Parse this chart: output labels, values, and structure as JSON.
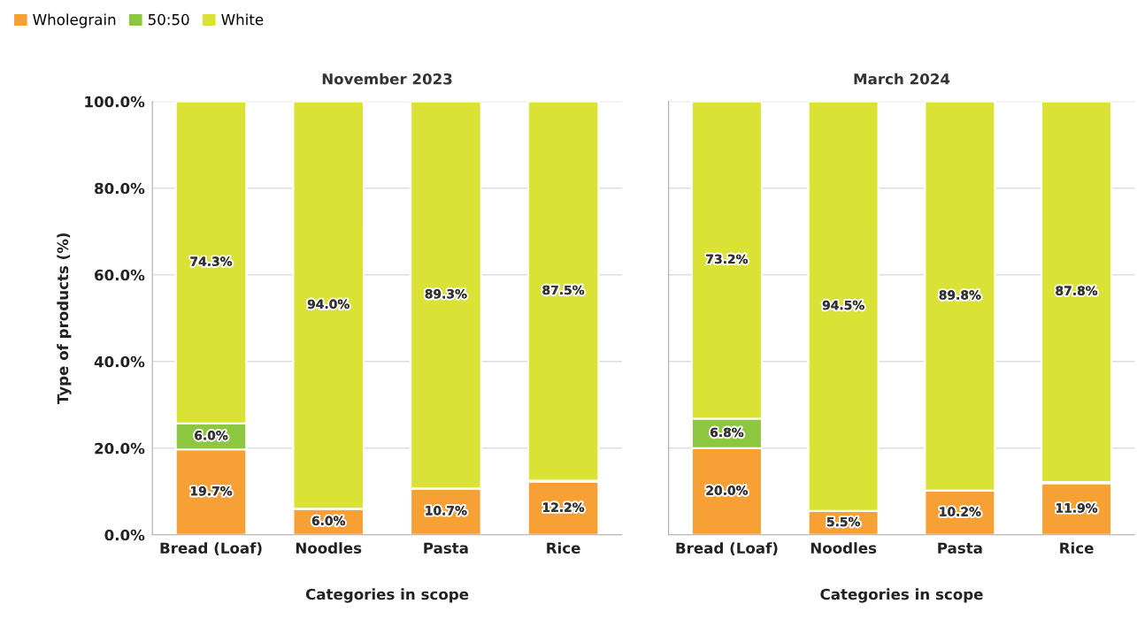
{
  "chart_data": [
    {
      "type": "bar",
      "stacked": true,
      "title": "November 2023",
      "xlabel": "Categories in scope",
      "ylabel": "Type of products (%)",
      "categories": [
        "Bread (Loaf)",
        "Noodles",
        "Pasta",
        "Rice"
      ],
      "series": [
        {
          "name": "Wholegrain",
          "color": "#f7a035",
          "values": [
            19.7,
            6.0,
            10.7,
            12.2
          ],
          "value_labels": [
            "19.7%",
            "6.0%",
            "10.7%",
            "12.2%"
          ]
        },
        {
          "name": "50:50",
          "color": "#8dc63f",
          "values": [
            6.0,
            0,
            0,
            0.3
          ],
          "value_labels": [
            "6.0%",
            null,
            null,
            null
          ]
        },
        {
          "name": "White",
          "color": "#dbe236",
          "values": [
            74.3,
            94.0,
            89.3,
            87.5
          ],
          "value_labels": [
            "74.3%",
            "94.0%",
            "89.3%",
            "87.5%"
          ]
        }
      ],
      "ylim": [
        0,
        100
      ],
      "yticks": [
        {
          "value": 0,
          "label": "0.0%"
        },
        {
          "value": 20,
          "label": "20.0%"
        },
        {
          "value": 40,
          "label": "40.0%"
        },
        {
          "value": 60,
          "label": "60.0%"
        },
        {
          "value": 80,
          "label": "80.0%"
        },
        {
          "value": 100,
          "label": "100.0%"
        }
      ],
      "grid": "y",
      "legend": "top left"
    },
    {
      "type": "bar",
      "stacked": true,
      "title": "March 2024",
      "xlabel": "Categories in scope",
      "categories": [
        "Bread (Loaf)",
        "Noodles",
        "Pasta",
        "Rice"
      ],
      "series": [
        {
          "color": "#f7a035",
          "values": [
            20.0,
            5.5,
            10.2,
            11.9
          ],
          "value_labels": [
            "20.0%",
            "5.5%",
            "10.2%",
            "11.9%"
          ]
        },
        {
          "color": "#8dc63f",
          "values": [
            6.8,
            0,
            0,
            0.3
          ],
          "value_labels": [
            "6.8%",
            null,
            null,
            null
          ]
        },
        {
          "color": "#dbe236",
          "values": [
            73.2,
            94.5,
            89.8,
            87.8
          ],
          "value_labels": [
            "73.2%",
            "94.5%",
            "89.8%",
            "87.8%"
          ]
        }
      ],
      "ylim": [
        0,
        100
      ],
      "yticks": [
        {
          "value": 0,
          "label": null
        },
        {
          "value": 20,
          "label": null
        },
        {
          "value": 40,
          "label": null
        },
        {
          "value": 60,
          "label": null
        },
        {
          "value": 80,
          "label": null
        },
        {
          "value": 100,
          "label": null
        }
      ],
      "grid": "y",
      "tick_labels": "x"
    }
  ]
}
